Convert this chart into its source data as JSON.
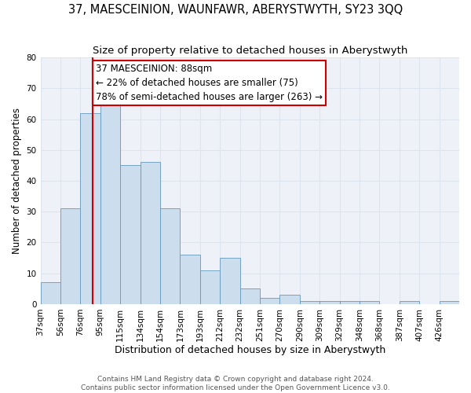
{
  "title": "37, MAESCEINION, WAUNFAWR, ABERYSTWYTH, SY23 3QQ",
  "subtitle": "Size of property relative to detached houses in Aberystwyth",
  "xlabel": "Distribution of detached houses by size in Aberystwyth",
  "ylabel": "Number of detached properties",
  "bin_labels": [
    "37sqm",
    "56sqm",
    "76sqm",
    "95sqm",
    "115sqm",
    "134sqm",
    "154sqm",
    "173sqm",
    "193sqm",
    "212sqm",
    "232sqm",
    "251sqm",
    "270sqm",
    "290sqm",
    "309sqm",
    "329sqm",
    "348sqm",
    "368sqm",
    "387sqm",
    "407sqm",
    "426sqm"
  ],
  "bar_heights": [
    7,
    31,
    62,
    65,
    45,
    46,
    31,
    16,
    11,
    15,
    5,
    2,
    3,
    1,
    1,
    1,
    1,
    0,
    1,
    0,
    1
  ],
  "bar_color": "#ccdded",
  "bar_edge_color": "#6699bb",
  "grid_color": "#dde4ee",
  "background_color": "#eef2f8",
  "vline_index": 2.68,
  "vline_color": "#cc0000",
  "annotation_text": "37 MAESCEINION: 88sqm\n← 22% of detached houses are smaller (75)\n78% of semi-detached houses are larger (263) →",
  "annotation_box_edge_color": "#cc0000",
  "annotation_box_face_color": "#ffffff",
  "ylim": [
    0,
    80
  ],
  "yticks": [
    0,
    10,
    20,
    30,
    40,
    50,
    60,
    70,
    80
  ],
  "footer_text": "Contains HM Land Registry data © Crown copyright and database right 2024.\nContains public sector information licensed under the Open Government Licence v3.0.",
  "title_fontsize": 10.5,
  "subtitle_fontsize": 9.5,
  "xlabel_fontsize": 9,
  "ylabel_fontsize": 8.5,
  "tick_fontsize": 7.5,
  "annotation_fontsize": 8.5,
  "footer_fontsize": 6.5
}
